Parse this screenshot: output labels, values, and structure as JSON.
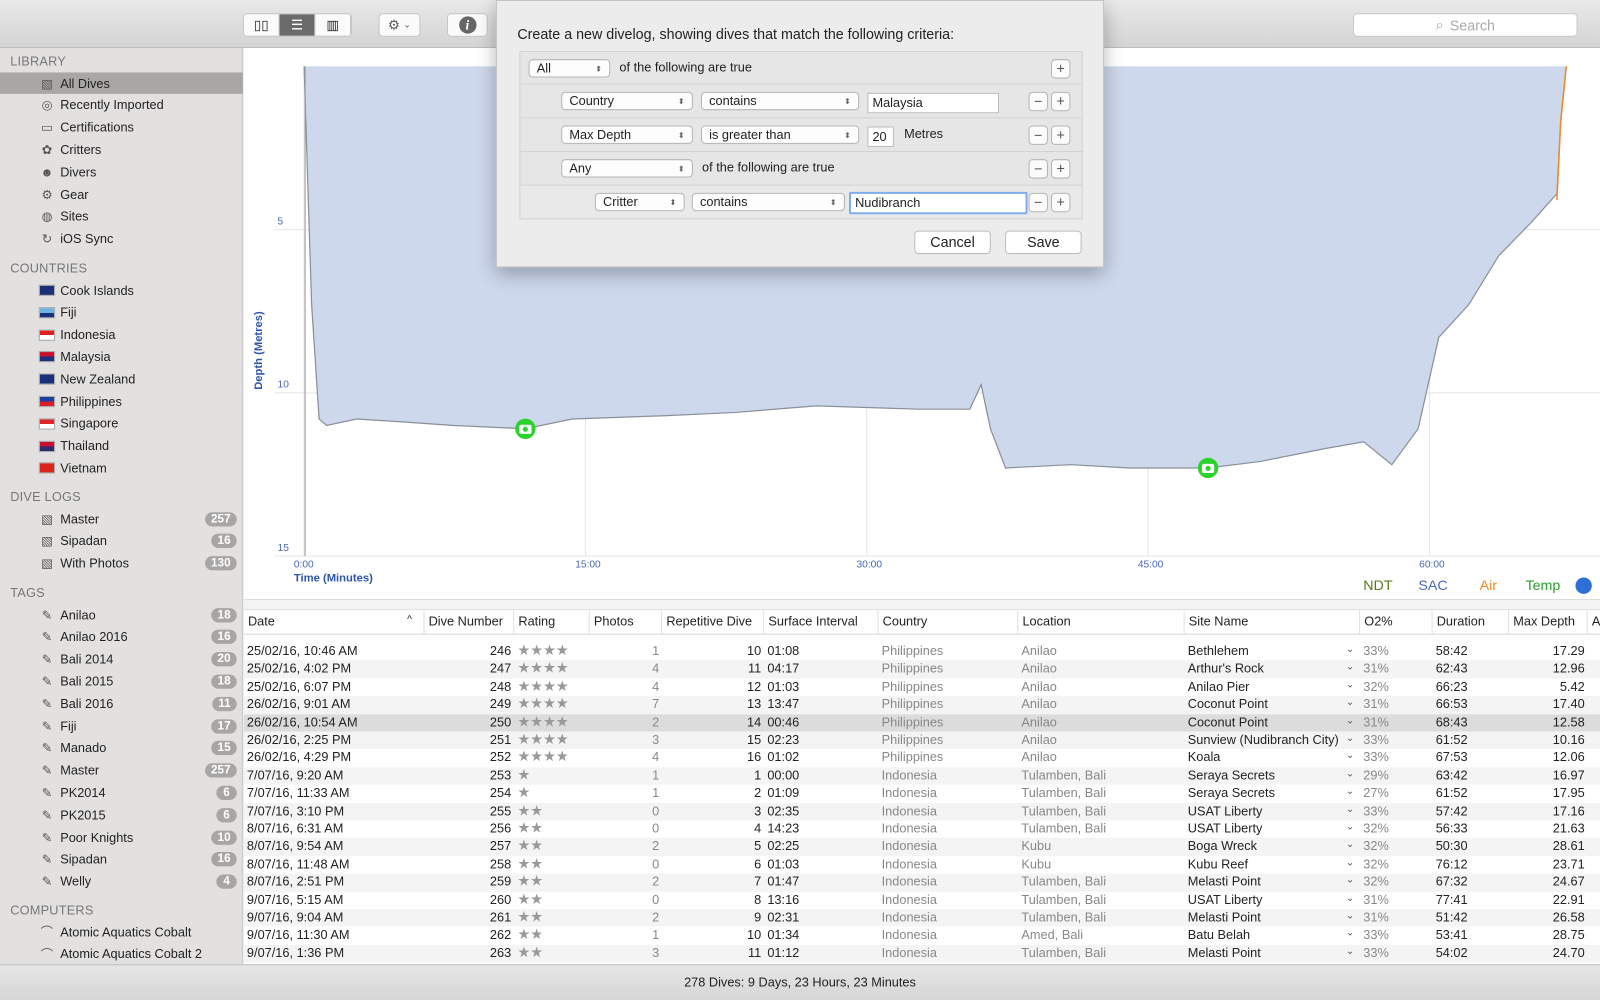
{
  "toolbar": {
    "view_buttons": [
      "browser-view-icon",
      "list-view-icon",
      "profile-view-icon"
    ],
    "active_view": 1,
    "gear": "⚙",
    "info": "i",
    "search_placeholder": "Search"
  },
  "sidebar": {
    "library_label": "LIBRARY",
    "library": [
      {
        "label": "All Dives",
        "icon": "all-dives-icon",
        "selected": true
      },
      {
        "label": "Recently Imported",
        "icon": "recent-icon"
      },
      {
        "label": "Certifications",
        "icon": "certification-icon"
      },
      {
        "label": "Critters",
        "icon": "critter-icon"
      },
      {
        "label": "Divers",
        "icon": "diver-icon"
      },
      {
        "label": "Gear",
        "icon": "gear-icon"
      },
      {
        "label": "Sites",
        "icon": "globe-icon"
      },
      {
        "label": "iOS Sync",
        "icon": "sync-icon"
      }
    ],
    "countries_label": "COUNTRIES",
    "countries": [
      {
        "label": "Cook Islands",
        "flag": [
          "#1a2f7a",
          "#1a2f7a"
        ]
      },
      {
        "label": "Fiji",
        "flag": [
          "#6cb4e4",
          "#1a2f7a"
        ]
      },
      {
        "label": "Indonesia",
        "flag": [
          "#e02020",
          "#ffffff"
        ]
      },
      {
        "label": "Malaysia",
        "flag": [
          "#c8102e",
          "#1a2f7a"
        ]
      },
      {
        "label": "New Zealand",
        "flag": [
          "#1a2f7a",
          "#1a2f7a"
        ]
      },
      {
        "label": "Philippines",
        "flag": [
          "#1a3fa0",
          "#d81f26"
        ]
      },
      {
        "label": "Singapore",
        "flag": [
          "#e0242c",
          "#ffffff"
        ]
      },
      {
        "label": "Thailand",
        "flag": [
          "#c8102e",
          "#2d2a6e"
        ]
      },
      {
        "label": "Vietnam",
        "flag": [
          "#da251d",
          "#da251d"
        ]
      }
    ],
    "logs_label": "DIVE LOGS",
    "logs": [
      {
        "label": "Master",
        "count": "257"
      },
      {
        "label": "Sipadan",
        "count": "16"
      },
      {
        "label": "With Photos",
        "count": "130"
      }
    ],
    "tags_label": "TAGS",
    "tags": [
      {
        "label": "Anilao",
        "count": "18"
      },
      {
        "label": "Anilao 2016",
        "count": "16"
      },
      {
        "label": "Bali 2014",
        "count": "20"
      },
      {
        "label": "Bali 2015",
        "count": "18"
      },
      {
        "label": "Bali 2016",
        "count": "11"
      },
      {
        "label": "Fiji",
        "count": "17"
      },
      {
        "label": "Manado",
        "count": "15"
      },
      {
        "label": "Master",
        "count": "257"
      },
      {
        "label": "PK2014",
        "count": "6"
      },
      {
        "label": "PK2015",
        "count": "6"
      },
      {
        "label": "Poor Knights",
        "count": "10"
      },
      {
        "label": "Sipadan",
        "count": "16"
      },
      {
        "label": "Welly",
        "count": "4"
      }
    ],
    "computers_label": "COMPUTERS",
    "computers": [
      {
        "label": "Atomic Aquatics Cobalt"
      },
      {
        "label": "Atomic Aquatics Cobalt 2"
      }
    ]
  },
  "chart_data": {
    "type": "area",
    "xlabel": "Time (Minutes)",
    "ylabel": "Depth (Metres)",
    "x_ticks": [
      "0:00",
      "15:00",
      "30:00",
      "45:00",
      "60:00"
    ],
    "y_ticks": [
      "5",
      "10",
      "15"
    ],
    "xlim": [
      0,
      68
    ],
    "ylim": [
      0,
      15
    ],
    "y_inverted": true,
    "grid": true,
    "fill_color": "#cdd8ec",
    "line_color": "#8a8f99",
    "air_color": "#f08a24",
    "profile": [
      [
        0,
        0
      ],
      [
        0.4,
        7.3
      ],
      [
        0.8,
        10.8
      ],
      [
        1.2,
        11.0
      ],
      [
        2.8,
        10.8
      ],
      [
        5.5,
        10.9
      ],
      [
        8,
        11.0
      ],
      [
        11.8,
        11.1
      ],
      [
        14.3,
        10.8
      ],
      [
        19.2,
        10.7
      ],
      [
        23,
        10.6
      ],
      [
        27.3,
        10.4
      ],
      [
        32.8,
        10.5
      ],
      [
        35.5,
        10.5
      ],
      [
        36.1,
        9.75
      ],
      [
        36.6,
        11.1
      ],
      [
        37.4,
        12.3
      ],
      [
        40.9,
        12.2
      ],
      [
        44,
        12.3
      ],
      [
        48.2,
        12.3
      ],
      [
        51,
        12.1
      ],
      [
        54.5,
        11.7
      ],
      [
        56.5,
        11.5
      ],
      [
        58,
        12.2
      ],
      [
        59.4,
        11.1
      ],
      [
        60.5,
        8.3
      ],
      [
        62.1,
        7.3
      ],
      [
        63.7,
        5.8
      ],
      [
        65.4,
        4.8
      ],
      [
        66.8,
        3.9
      ],
      [
        67,
        1.7
      ],
      [
        67.3,
        0
      ]
    ],
    "air_segment": [
      [
        66.8,
        4.1
      ],
      [
        67,
        1.7
      ],
      [
        67.3,
        0
      ]
    ],
    "photos": [
      [
        11.8,
        11.1
      ],
      [
        48.2,
        12.3
      ]
    ],
    "legend": [
      {
        "label": "NDT",
        "color": "#5a7a1a"
      },
      {
        "label": "SAC",
        "color": "#4a68b0"
      },
      {
        "label": "Air",
        "color": "#f08a24"
      },
      {
        "label": "Temp",
        "color": "#2aa02a"
      }
    ]
  },
  "table": {
    "sorted_column": "Date",
    "columns": [
      "Date",
      "Dive Number",
      "Rating",
      "Photos",
      "Repetitive Dive",
      "Surface Interval",
      "Country",
      "Location",
      "Site Name",
      "O2%",
      "Duration",
      "Max Depth",
      "Av"
    ],
    "rows": [
      [
        "25/02/16, 10:46 AM",
        "246",
        4,
        "1",
        "10",
        "01:08",
        "Philippines",
        "Anilao",
        "Bethlehem",
        "33%",
        "58:42",
        "17.29"
      ],
      [
        "25/02/16, 4:02 PM",
        "247",
        4,
        "4",
        "11",
        "04:17",
        "Philippines",
        "Anilao",
        "Arthur's Rock",
        "31%",
        "62:43",
        "12.96"
      ],
      [
        "25/02/16, 6:07 PM",
        "248",
        4,
        "4",
        "12",
        "01:03",
        "Philippines",
        "Anilao",
        "Anilao Pier",
        "32%",
        "66:23",
        "5.42"
      ],
      [
        "26/02/16, 9:01 AM",
        "249",
        4,
        "7",
        "13",
        "13:47",
        "Philippines",
        "Anilao",
        "Coconut Point",
        "31%",
        "66:53",
        "17.40"
      ],
      [
        "26/02/16, 10:54 AM",
        "250",
        4,
        "2",
        "14",
        "00:46",
        "Philippines",
        "Anilao",
        "Coconut Point",
        "31%",
        "68:43",
        "12.58"
      ],
      [
        "26/02/16, 2:25 PM",
        "251",
        4,
        "3",
        "15",
        "02:23",
        "Philippines",
        "Anilao",
        "Sunview (Nudibranch City)",
        "33%",
        "61:52",
        "10.16"
      ],
      [
        "26/02/16, 4:29 PM",
        "252",
        4,
        "4",
        "16",
        "01:02",
        "Philippines",
        "Anilao",
        "Koala",
        "33%",
        "67:53",
        "12.06"
      ],
      [
        "7/07/16, 9:20 AM",
        "253",
        1,
        "1",
        "1",
        "00:00",
        "Indonesia",
        "Tulamben, Bali",
        "Seraya Secrets",
        "29%",
        "63:42",
        "16.97"
      ],
      [
        "7/07/16, 11:33 AM",
        "254",
        1,
        "1",
        "2",
        "01:09",
        "Indonesia",
        "Tulamben, Bali",
        "Seraya Secrets",
        "27%",
        "61:52",
        "17.95"
      ],
      [
        "7/07/16, 3:10 PM",
        "255",
        2,
        "0",
        "3",
        "02:35",
        "Indonesia",
        "Tulamben, Bali",
        "USAT Liberty",
        "33%",
        "57:42",
        "17.16"
      ],
      [
        "8/07/16, 6:31 AM",
        "256",
        2,
        "0",
        "4",
        "14:23",
        "Indonesia",
        "Tulamben, Bali",
        "USAT Liberty",
        "32%",
        "56:33",
        "21.63"
      ],
      [
        "8/07/16, 9:54 AM",
        "257",
        2,
        "2",
        "5",
        "02:25",
        "Indonesia",
        "Kubu",
        "Boga Wreck",
        "32%",
        "50:30",
        "28.61"
      ],
      [
        "8/07/16, 11:48 AM",
        "258",
        2,
        "0",
        "6",
        "01:03",
        "Indonesia",
        "Kubu",
        "Kubu Reef",
        "32%",
        "76:12",
        "23.71"
      ],
      [
        "8/07/16, 2:51 PM",
        "259",
        2,
        "2",
        "7",
        "01:47",
        "Indonesia",
        "Tulamben, Bali",
        "Melasti Point",
        "32%",
        "67:32",
        "24.67"
      ],
      [
        "9/07/16, 5:15 AM",
        "260",
        2,
        "0",
        "8",
        "13:16",
        "Indonesia",
        "Tulamben, Bali",
        "USAT Liberty",
        "31%",
        "77:41",
        "22.91"
      ],
      [
        "9/07/16, 9:04 AM",
        "261",
        2,
        "2",
        "9",
        "02:31",
        "Indonesia",
        "Tulamben, Bali",
        "Melasti Point",
        "31%",
        "51:42",
        "26.58"
      ],
      [
        "9/07/16, 11:30 AM",
        "262",
        2,
        "1",
        "10",
        "01:34",
        "Indonesia",
        "Amed, Bali",
        "Batu Belah",
        "33%",
        "53:41",
        "28.75"
      ],
      [
        "9/07/16, 1:36 PM",
        "263",
        2,
        "3",
        "11",
        "01:12",
        "Indonesia",
        "Tulamben, Bali",
        "Melasti Point",
        "33%",
        "54:02",
        "24.70"
      ]
    ],
    "selected_row": 4
  },
  "status": "278 Dives: 9 Days, 23 Hours, 23 Minutes",
  "dialog": {
    "title": "Create a new divelog, showing dives that match the following criteria:",
    "match_all": "All",
    "match_all_suffix": "of the following are true",
    "rule1": {
      "field": "Country",
      "op": "contains",
      "value": "Malaysia"
    },
    "rule2": {
      "field": "Max Depth",
      "op": "is greater than",
      "value": "20",
      "unit": "Metres"
    },
    "group": {
      "match": "Any",
      "suffix": "of the following are true"
    },
    "rule3": {
      "field": "Critter",
      "op": "contains",
      "value": "Nudibranch"
    },
    "cancel": "Cancel",
    "save": "Save"
  }
}
